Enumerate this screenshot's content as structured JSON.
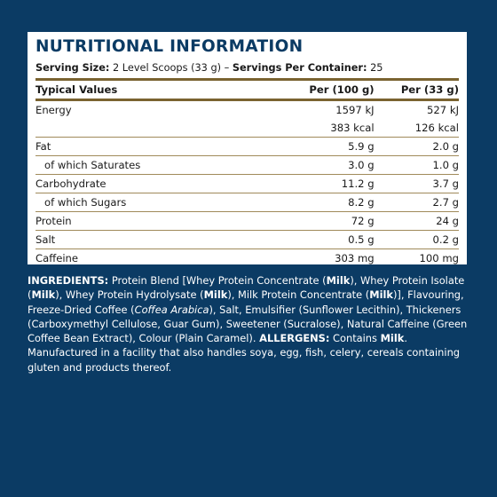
{
  "colors": {
    "background": "#0b3b64",
    "panel": "#ffffff",
    "rule": "#7a6330",
    "title": "#0b3b64"
  },
  "panel": {
    "title": "NUTRITIONAL INFORMATION",
    "serving_label": "Serving Size:",
    "serving_value": "2 Level Scoops (33 g)",
    "serving_sep": "–",
    "servings_label": "Servings Per Container:",
    "servings_value": "25"
  },
  "table": {
    "headers": [
      "Typical Values",
      "Per (100 g)",
      "Per (33 g)"
    ],
    "rows": [
      {
        "name": "Energy",
        "per100": "1597 kJ",
        "per33": "527 kJ"
      },
      {
        "name": "",
        "per100": "383 kcal",
        "per33": "126 kcal"
      },
      {
        "name": "Fat",
        "per100": "5.9 g",
        "per33": "2.0 g"
      },
      {
        "name": "of which Saturates",
        "per100": "3.0 g",
        "per33": "1.0 g"
      },
      {
        "name": "Carbohydrate",
        "per100": "11.2 g",
        "per33": "3.7 g"
      },
      {
        "name": "of which Sugars",
        "per100": "8.2 g",
        "per33": "2.7 g"
      },
      {
        "name": "Protein",
        "per100": "72 g",
        "per33": "24 g"
      },
      {
        "name": "Salt",
        "per100": "0.5 g",
        "per33": "0.2 g"
      },
      {
        "name": "Caffeine",
        "per100": "303 mg",
        "per33": "100 mg"
      }
    ]
  },
  "ingredients": {
    "label": "INGREDIENTS:",
    "t1": " Protein Blend [Whey Protein Concentrate (",
    "milk1": "Milk",
    "t2": "), Whey Protein Isolate (",
    "milk2": "Milk",
    "t3": "), Whey Protein Hydrolysate (",
    "milk3": "Milk",
    "t4": "), Milk Protein Concentrate (",
    "milk4": "Milk",
    "t5": ")], Flavouring, Freeze-Dried Coffee (",
    "coffea": "Coffea Arabica",
    "t6": "), Salt, Emulsifier (Sunflower Lecithin), Thickeners (Carboxymethyl Cellulose, Guar Gum), Sweetener (Sucralose), Natural Caffeine (Green Coffee Bean Extract), Colour (Plain Caramel). ",
    "allergens_label": "ALLERGENS:",
    "t7": " Contains ",
    "milk5": "Milk",
    "t8": ". Manufactured in a facility that also handles soya, egg, fish, celery, cereals containing gluten and products thereof."
  }
}
